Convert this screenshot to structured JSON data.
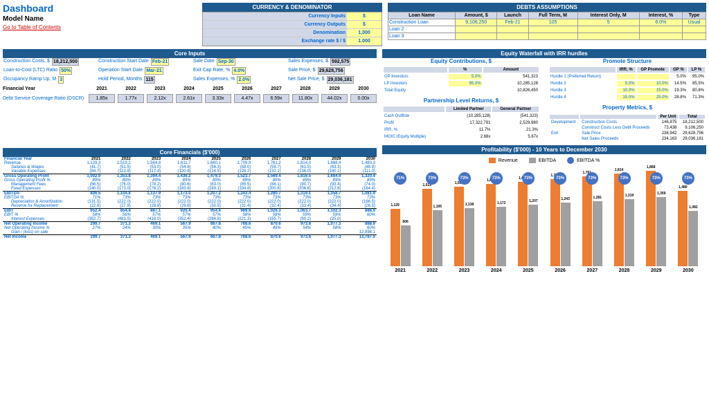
{
  "header": {
    "title": "Dashboard",
    "subtitle": "Model Name",
    "link": "Go to Table of Contents"
  },
  "currency": {
    "title": "CURRENCY & DENOMINATOR",
    "rows": [
      {
        "label": "Currency Inputs",
        "value": "$"
      },
      {
        "label": "Currency Outputs",
        "value": "$"
      },
      {
        "label": "Denomination",
        "value": "1,000"
      },
      {
        "label": "Exchange rate $ / $",
        "value": "1.000"
      }
    ]
  },
  "debts": {
    "title": "DEBTS ASSUMPTIONS",
    "headers": [
      "Loan Name",
      "Amount, $",
      "Launch",
      "Full Term, M",
      "Interest Only, M",
      "Interest, %",
      "Type"
    ],
    "rows": [
      {
        "name": "Construction Loan",
        "amount": "9,106,250",
        "launch": "Feb-21",
        "term": "105",
        "io": "5",
        "interest": "6.0%",
        "type": "Usual"
      },
      {
        "name": "Loan 2",
        "amount": "",
        "launch": "",
        "term": "",
        "io": "",
        "interest": "",
        "type": ""
      },
      {
        "name": "Loan 3",
        "amount": "",
        "launch": "",
        "term": "",
        "io": "",
        "interest": "",
        "type": ""
      }
    ]
  },
  "coreInputs": {
    "title": "Core Inputs",
    "items": [
      {
        "label": "Construction Costs, $",
        "value": "18,212,500",
        "cls": "gray"
      },
      {
        "label": "Construction Start Date",
        "value": "Feb-21",
        "cls": ""
      },
      {
        "label": "Sale Date",
        "value": "Sep-30",
        "cls": ""
      },
      {
        "label": "Sales Expenses, $",
        "value": "592,575",
        "cls": "gray"
      },
      {
        "label": "Loan-to-Cost (LTC) Ratio",
        "value": "50%",
        "cls": ""
      },
      {
        "label": "Operation Start Date",
        "value": "Mar-21",
        "cls": ""
      },
      {
        "label": "Exit Cap Rate, %",
        "value": "4.0%",
        "cls": ""
      },
      {
        "label": "Sale Price, $",
        "value": "29,628,756",
        "cls": "gray"
      },
      {
        "label": "Occupancy Ramp Up, M",
        "value": "3",
        "cls": ""
      },
      {
        "label": "Hold Period, Months",
        "value": "115",
        "cls": "gray"
      },
      {
        "label": "Sales Expenses, %",
        "value": "2.0%",
        "cls": ""
      },
      {
        "label": "Net Sale Price, $",
        "value": "29,036,181",
        "cls": "gray"
      }
    ]
  },
  "years": [
    "2021",
    "2022",
    "2023",
    "2024",
    "2025",
    "2026",
    "2027",
    "2028",
    "2029",
    "2030"
  ],
  "dscr": {
    "label": "Debt Service Coverage Ratio (DSCR)",
    "values": [
      "1.85x",
      "1.77x",
      "2.12x",
      "2.61x",
      "3.33x",
      "4.47x",
      "6.59x",
      "11.80x",
      "44.02x",
      "0.00x"
    ]
  },
  "equity": {
    "title": "Equity Waterfall with IRR hurdles",
    "contrib": {
      "title": "Equity Contributions, $",
      "headers": [
        "",
        "%",
        "Amount"
      ],
      "rows": [
        {
          "name": "GP Investors",
          "pct": "5.0%",
          "amt": "541,323"
        },
        {
          "name": "LP Investors",
          "pct": "95.0%",
          "amt": "10,285,128"
        },
        {
          "name": "Total Equity",
          "pct": "",
          "amt": "10,826,450"
        }
      ]
    },
    "promote": {
      "title": "Promote Structure",
      "headers": [
        "",
        "IRR, %",
        "GP Promote",
        "GP %",
        "LP %"
      ],
      "rows": [
        {
          "name": "Hurdle 1 (Preferred Return)",
          "irr": "",
          "gp": "",
          "gpp": "5.0%",
          "lpp": "95.0%"
        },
        {
          "name": "Hurdle 2",
          "irr": "5.0%",
          "gp": "10.0%",
          "gpp": "14.5%",
          "lpp": "85.5%"
        },
        {
          "name": "Hurdle 3",
          "irr": "10.0%",
          "gp": "15.0%",
          "gpp": "19.3%",
          "lpp": "80.8%"
        },
        {
          "name": "Hurdle 4",
          "irr": "15.0%",
          "gp": "25.0%",
          "gpp": "28.8%",
          "lpp": "71.3%"
        }
      ]
    },
    "partnership": {
      "title": "Partnership Level Returns, $",
      "headers": [
        "",
        "Limited Partner",
        "General Partner"
      ],
      "rows": [
        {
          "name": "Cash Outflow",
          "lp": "(10,285,128)",
          "gp": "(541,323)"
        },
        {
          "name": "Profit",
          "lp": "17,322,791",
          "gp": "2,529,980"
        },
        {
          "name": "IRR, %",
          "lp": "11.7%",
          "gp": "21.3%"
        },
        {
          "name": "MOIC (Equity Multiple)",
          "lp": "2.68x",
          "gp": "5.67x"
        }
      ]
    },
    "property": {
      "title": "Property Metrics, $",
      "rows": [
        {
          "cat": "Development",
          "name": "Construction Costs",
          "unit": "146,875",
          "total": "18,212,500"
        },
        {
          "cat": "",
          "name": "Construct Costs Less Debt Proceeds",
          "unit": "73,438",
          "total": "9,106,250"
        },
        {
          "cat": "Exit",
          "name": "Sale Price",
          "unit": "238,942",
          "total": "29,628,756"
        },
        {
          "cat": "",
          "name": "Net Sales Proceeds",
          "unit": "234,163",
          "total": "29,036,181"
        }
      ]
    }
  },
  "financials": {
    "title": "Core Financials ($'000)",
    "label": "Financial Year",
    "rows": [
      {
        "name": "Revenue",
        "vals": [
          "1,129.3",
          "1,519.2",
          "1,564.8",
          "1,611.7",
          "1,660.1",
          "1,709.9",
          "1,761.2",
          "1,814.0",
          "1,868.4",
          "1,480.3"
        ],
        "bold": false
      },
      {
        "name": "Salaries & Wages",
        "vals": [
          "(41.7)",
          "(51.5)",
          "(53.0)",
          "(54.6)",
          "(56.3)",
          "(58.0)",
          "(59.7)",
          "(61.5)",
          "(63.3)",
          "(48.9)"
        ],
        "indent": true
      },
      {
        "name": "Variable Expenses",
        "vals": [
          "(84.7)",
          "(113.9)",
          "(117.4)",
          "(120.9)",
          "(124.5)",
          "(128.2)",
          "(132.1)",
          "(136.0)",
          "(140.1)",
          "(111.0)"
        ],
        "indent": true
      },
      {
        "name": "Gross Operating Profit",
        "vals": [
          "1,002.9",
          "1,353.8",
          "1,394.4",
          "1,436.2",
          "1,479.3",
          "1,523.7",
          "1,569.4",
          "1,616.5",
          "1,664.9",
          "1,320.4"
        ],
        "bold": true
      },
      {
        "name": "Gross Operating Profit %",
        "vals": [
          "89%",
          "89%",
          "89%",
          "89%",
          "89%",
          "89%",
          "89%",
          "89%",
          "89%",
          "89%"
        ],
        "pct": true
      },
      {
        "name": "Management Fees",
        "vals": [
          "(56.5)",
          "(76.0)",
          "(78.2)",
          "(80.6)",
          "(83.0)",
          "(85.5)",
          "(88.1)",
          "(90.7)",
          "(93.4)",
          "(74.0)"
        ],
        "indent": true
      },
      {
        "name": "Fixed Expenses",
        "vals": [
          "(140.0)",
          "(173.0)",
          "(178.2)",
          "(183.6)",
          "(189.1)",
          "(194.8)",
          "(200.6)",
          "(206.6)",
          "(212.8)",
          "(164.4)"
        ],
        "indent": true
      },
      {
        "name": "EBITDA",
        "vals": [
          "806.5",
          "1,104.8",
          "1,137.9",
          "1,172.0",
          "1,207.2",
          "1,243.4",
          "1,280.7",
          "1,319.1",
          "1,358.7",
          "1,081.9"
        ],
        "bold": true
      },
      {
        "name": "EBITDA %",
        "vals": [
          "71%",
          "73%",
          "73%",
          "73%",
          "73%",
          "73%",
          "73%",
          "73%",
          "73%",
          "73%"
        ],
        "pct": true
      },
      {
        "name": "Depreciation & Amortization",
        "vals": [
          "(131.5)",
          "(222.0)",
          "(222.0)",
          "(222.0)",
          "(222.0)",
          "(222.0)",
          "(222.0)",
          "(222.0)",
          "(222.0)",
          "(166.5)"
        ],
        "indent": true
      },
      {
        "name": "Reserve for Replacement",
        "vals": [
          "(22.6)",
          "(27.9)",
          "(28.8)",
          "(29.6)",
          "(30.5)",
          "(31.4)",
          "(32.4)",
          "(33.4)",
          "(34.4)",
          "(26.5)"
        ],
        "indent": true
      },
      {
        "name": "EBIT",
        "vals": [
          "652.4",
          "854.8",
          "887.1",
          "920.4",
          "954.6",
          "989.9",
          "1,026.3",
          "1,063.7",
          "1,102.3",
          "888.9"
        ],
        "bold": true
      },
      {
        "name": "EBIT %",
        "vals": [
          "58%",
          "56%",
          "57%",
          "57%",
          "57%",
          "58%",
          "58%",
          "59%",
          "59%",
          "60%"
        ],
        "pct": true
      },
      {
        "name": "Interest Expenses",
        "vals": [
          "(352.7)",
          "(483.5)",
          "(418.0)",
          "(352.4)",
          "(286.8)",
          "(221.3)",
          "(155.7)",
          "(90.2)",
          "(25.0)",
          ""
        ],
        "indent": true
      },
      {
        "name": "Net Operating Income",
        "vals": [
          "299.7",
          "371.2",
          "469.1",
          "567.9",
          "667.8",
          "768.6",
          "870.6",
          "973.6",
          "1,077.3",
          "888.9"
        ],
        "bold": true
      },
      {
        "name": "Net Operating Income %",
        "vals": [
          "27%",
          "24%",
          "30%",
          "35%",
          "40%",
          "45%",
          "49%",
          "54%",
          "58%",
          "60%"
        ],
        "pct": true
      },
      {
        "name": "Gain / (loss) on sale",
        "vals": [
          "",
          "",
          "",
          "",
          "",
          "",
          "",
          "",
          "",
          "12,898.1"
        ],
        "indent": true
      },
      {
        "name": "Net Income",
        "vals": [
          "299.7",
          "371.2",
          "469.1",
          "567.9",
          "667.8",
          "768.6",
          "870.6",
          "973.6",
          "1,077.3",
          "13,787.0"
        ],
        "bold": true
      }
    ]
  },
  "chart": {
    "title": "Profitability ($'000) - 10 Years to December 2030",
    "legend": [
      {
        "label": "Revenue",
        "color": "#ed7d31",
        "type": "box"
      },
      {
        "label": "EBITDA",
        "color": "#a0a0a0",
        "type": "box"
      },
      {
        "label": "EBITDA %",
        "color": "#4472c4",
        "type": "dot"
      }
    ],
    "max": 1900,
    "data": [
      {
        "year": "2021",
        "rev": 1129,
        "ebit": 806,
        "pct": "71%"
      },
      {
        "year": "2022",
        "rev": 1519,
        "ebit": 1105,
        "pct": "73%"
      },
      {
        "year": "2023",
        "rev": 1565,
        "ebit": 1138,
        "pct": "73%"
      },
      {
        "year": "2024",
        "rev": 1612,
        "ebit": 1172,
        "pct": "73%"
      },
      {
        "year": "2025",
        "rev": 1660,
        "ebit": 1207,
        "pct": "73%"
      },
      {
        "year": "2026",
        "rev": 1710,
        "ebit": 1243,
        "pct": "73%"
      },
      {
        "year": "2027",
        "rev": 1761,
        "ebit": 1281,
        "pct": "73%"
      },
      {
        "year": "2028",
        "rev": 1814,
        "ebit": 1319,
        "pct": "73%"
      },
      {
        "year": "2029",
        "rev": 1868,
        "ebit": 1359,
        "pct": "73%"
      },
      {
        "year": "2030",
        "rev": 1480,
        "ebit": 1082,
        "pct": "73%"
      }
    ]
  }
}
